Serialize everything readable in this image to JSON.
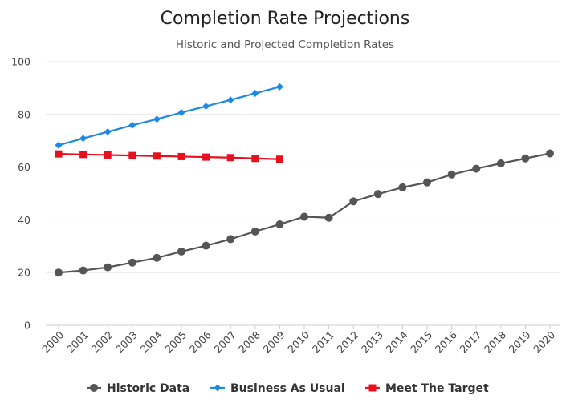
{
  "chart_data": {
    "type": "line",
    "title": "Completion Rate Projections",
    "subtitle": "Historic and Projected Completion Rates",
    "xlabel": "",
    "ylabel": "",
    "ylim": [
      0,
      100
    ],
    "y_ticks": [
      "0",
      "20",
      "40",
      "60",
      "80",
      "100"
    ],
    "grid": true,
    "legend_position": "bottom",
    "categories": [
      "2000",
      "2001",
      "2002",
      "2003",
      "2004",
      "2005",
      "2006",
      "2007",
      "2008",
      "2009",
      "2010",
      "2011",
      "2012",
      "2013",
      "2014",
      "2015",
      "2016",
      "2017",
      "2018",
      "2019",
      "2020"
    ],
    "series": [
      {
        "name": "Historic Data",
        "color": "#555555",
        "marker": "circle",
        "values": [
          20,
          20.8,
          22,
          23.8,
          25.6,
          28,
          30.2,
          32.7,
          35.6,
          38.3,
          41.2,
          40.8,
          47,
          49.8,
          52.3,
          54.2,
          57.2,
          59.4,
          61.4,
          63.3,
          65.2
        ]
      },
      {
        "name": "Business As Usual",
        "color": "#1E88E5",
        "marker": "diamond",
        "values": [
          68.3,
          70.9,
          73.4,
          75.9,
          78.2,
          80.7,
          83.1,
          85.5,
          88,
          90.5,
          null,
          null,
          null,
          null,
          null,
          null,
          null,
          null,
          null,
          null,
          null
        ]
      },
      {
        "name": "Meet The Target",
        "color": "#E8101E",
        "marker": "square",
        "values": [
          65,
          64.8,
          64.6,
          64.4,
          64.2,
          64,
          63.8,
          63.6,
          63.3,
          63,
          null,
          null,
          null,
          null,
          null,
          null,
          null,
          null,
          null,
          null,
          null
        ]
      }
    ]
  }
}
